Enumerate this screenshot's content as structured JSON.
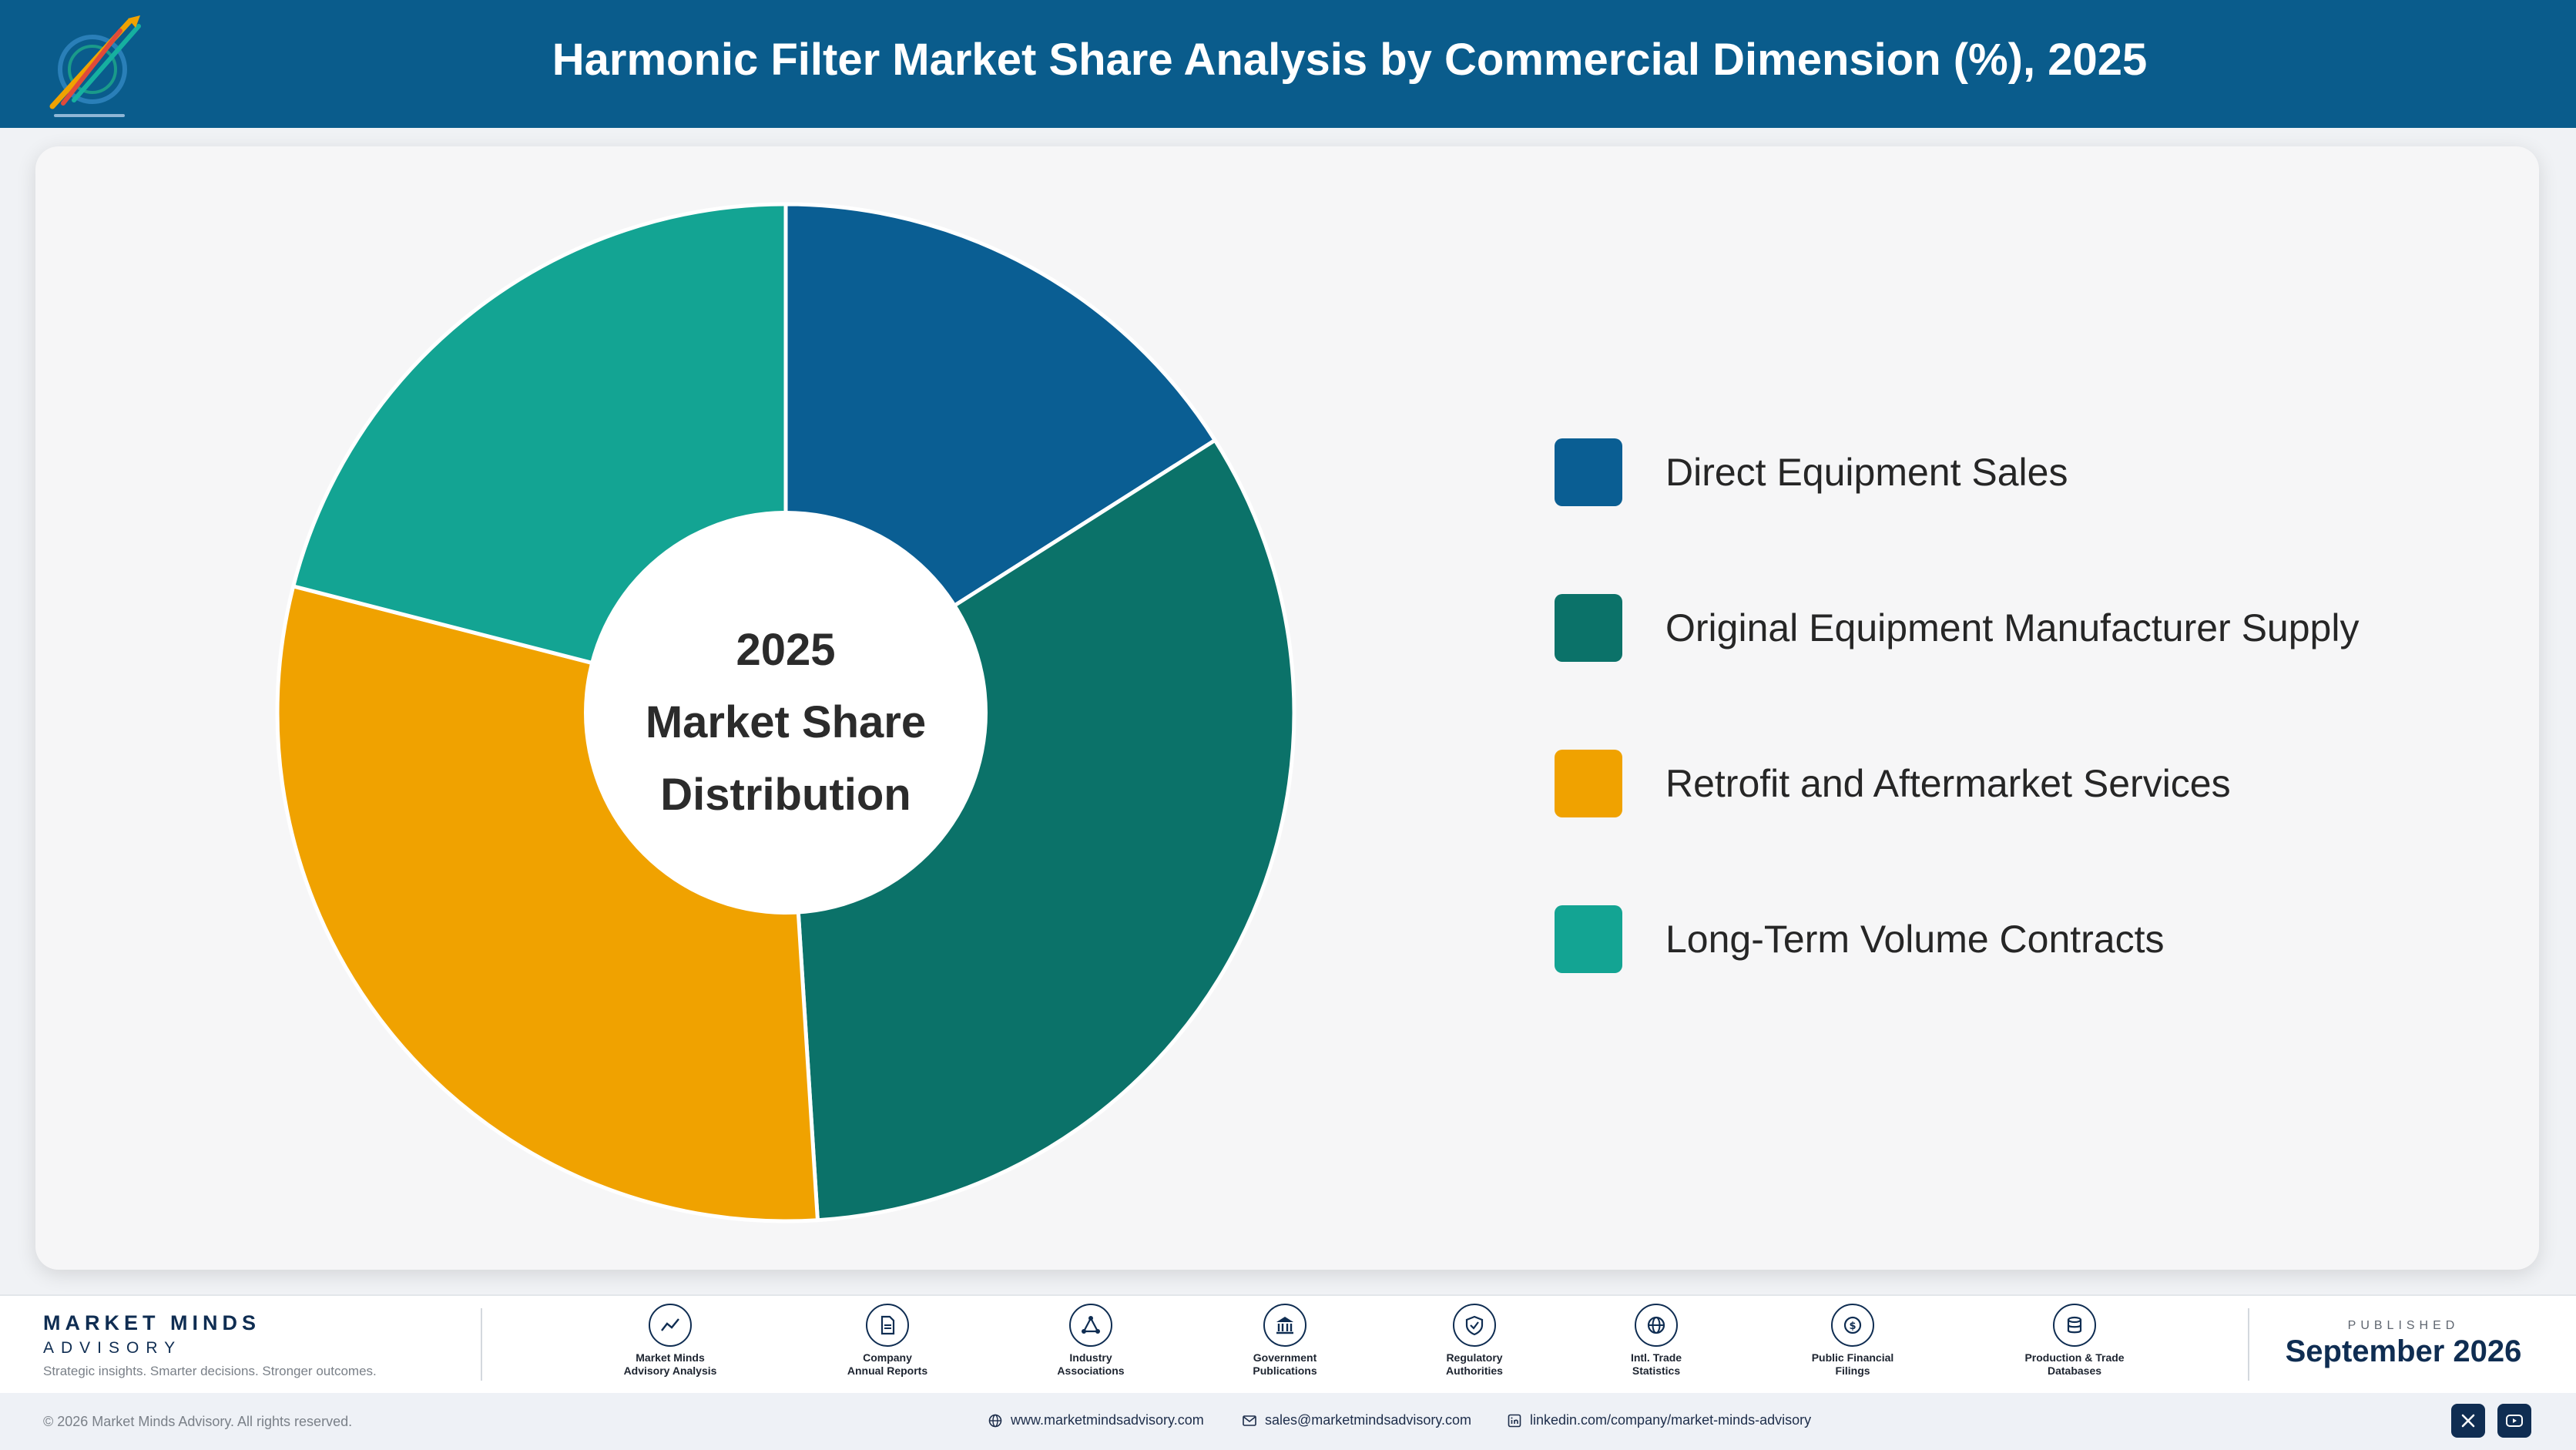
{
  "header": {
    "title": "Harmonic Filter Market Share Analysis by Commercial Dimension (%), 2025",
    "logo_icon": "market-minds-advisory-logo"
  },
  "chart_data": {
    "type": "pie",
    "style": "donut",
    "center_label": [
      "2025",
      "Market Share",
      "Distribution"
    ],
    "categories": [
      "Direct Equipment Sales",
      "Original Equipment Manufacturer Supply",
      "Retrofit and Aftermarket Services",
      "Long-Term Volume Contracts"
    ],
    "values": [
      16,
      33,
      30,
      21
    ],
    "unit": "%",
    "colors": [
      "#0a5e93",
      "#0b7269",
      "#f0a200",
      "#13a493"
    ],
    "legend_position": "right",
    "start_angle": "top, clockwise"
  },
  "footer": {
    "brand_name": "MARKET MINDS",
    "brand_sub": "ADVISORY",
    "tagline": "Strategic insights. Smarter decisions. Stronger outcomes.",
    "sources": [
      {
        "label": "Market Minds\nAdvisory Analysis",
        "icon": "trend-chart-icon"
      },
      {
        "label": "Company\nAnnual Reports",
        "icon": "document-icon"
      },
      {
        "label": "Industry\nAssociations",
        "icon": "network-icon"
      },
      {
        "label": "Government\nPublications",
        "icon": "government-building-icon"
      },
      {
        "label": "Regulatory\nAuthorities",
        "icon": "shield-check-icon"
      },
      {
        "label": "Intl. Trade\nStatistics",
        "icon": "globe-icon"
      },
      {
        "label": "Public Financial\nFilings",
        "icon": "dollar-coin-icon"
      },
      {
        "label": "Production & Trade\nDatabases",
        "icon": "database-icon"
      }
    ],
    "published_label": "PUBLISHED",
    "published_date": "September 2026"
  },
  "bottom_bar": {
    "copyright": "© 2026 Market Minds Advisory. All rights reserved.",
    "website": "www.marketmindsadvisory.com",
    "email": "sales@marketmindsadvisory.com",
    "linkedin": "linkedin.com/company/market-minds-advisory",
    "social_icons": [
      "x-icon",
      "youtube-icon"
    ]
  }
}
